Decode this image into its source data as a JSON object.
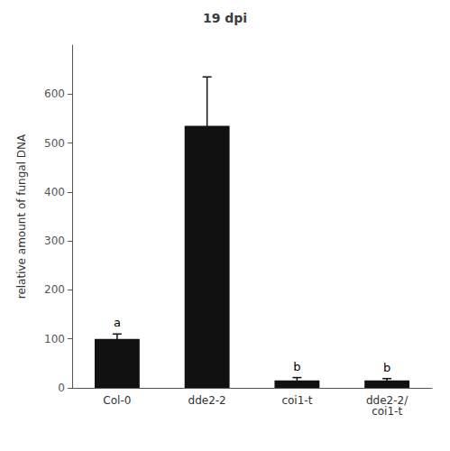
{
  "chart_data": {
    "type": "bar",
    "title": "19 dpi",
    "ylabel": "relative amount of fungal DNA",
    "categories": [
      "Col-0",
      "dde2-2",
      "coi1-t",
      "dde2-2/\ncoi1-t"
    ],
    "values": [
      100,
      535,
      15,
      15
    ],
    "errors": [
      10,
      100,
      6,
      4
    ],
    "letters": [
      "a",
      null,
      "b",
      "b"
    ],
    "color": "#111111",
    "ylim": [
      0,
      700
    ],
    "yticks": [
      0,
      100,
      200,
      300,
      400,
      500,
      600
    ],
    "grid": false
  }
}
